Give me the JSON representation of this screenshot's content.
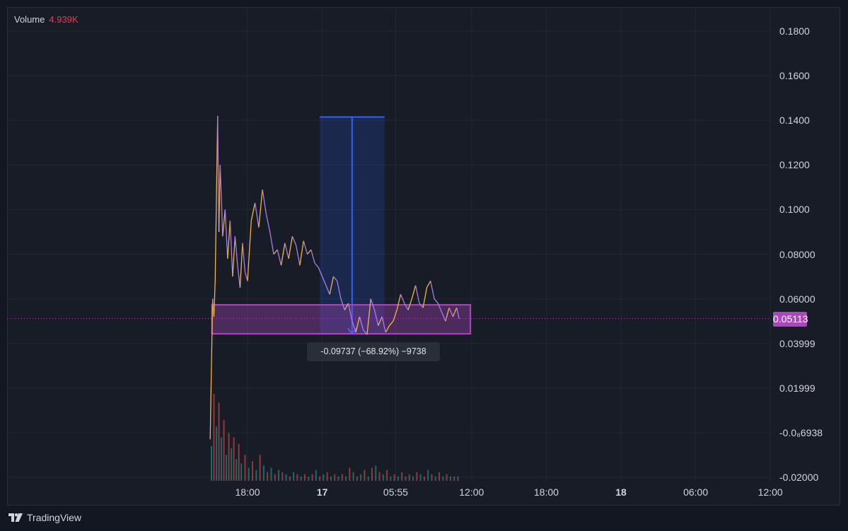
{
  "volume": {
    "label": "Volume",
    "value": "4.939K"
  },
  "brand": {
    "name": "TradingView",
    "icon": "tradingview-logo-icon"
  },
  "price_badge": "0.05113",
  "measure_label": "-0.09737 (−68.92%) −9738",
  "colors": {
    "background": "#181c27",
    "grid": "#242833",
    "price_line_up": "#f5b342",
    "price_line_down": "#a77ee8",
    "measure_fill": "#2962ff",
    "rectangle": "#ab47bc",
    "volume_up": "#26a69a",
    "volume_down": "#ef5350"
  },
  "chart_data": {
    "type": "line",
    "title": "",
    "xlabel": "",
    "ylabel": "",
    "ylim": [
      -0.02,
      0.19
    ],
    "y_ticks": [
      {
        "label": "0.1800",
        "value": 0.18
      },
      {
        "label": "0.1600",
        "value": 0.16
      },
      {
        "label": "0.1400",
        "value": 0.14
      },
      {
        "label": "0.1200",
        "value": 0.12
      },
      {
        "label": "0.1000",
        "value": 0.1
      },
      {
        "label": "0.08000",
        "value": 0.08
      },
      {
        "label": "0.06000",
        "value": 0.06
      },
      {
        "label": "0.03999",
        "value": 0.04
      },
      {
        "label": "0.01999",
        "value": 0.02
      },
      {
        "label": "-0.0₈6938",
        "value": 0.0
      },
      {
        "label": "-0.02000",
        "value": -0.02
      }
    ],
    "x_ticks": [
      {
        "label": "18:00",
        "t": 3,
        "bold": false
      },
      {
        "label": "17",
        "t": 9,
        "bold": true
      },
      {
        "label": "05:55",
        "t": 14.9,
        "bold": false
      },
      {
        "label": "12:00",
        "t": 21,
        "bold": false
      },
      {
        "label": "18:00",
        "t": 27,
        "bold": false
      },
      {
        "label": "18",
        "t": 33,
        "bold": true
      },
      {
        "label": "06:00",
        "t": 39,
        "bold": false
      },
      {
        "label": "12:00",
        "t": 45,
        "bold": false
      }
    ],
    "x_range_hours": [
      -2.5,
      49
    ],
    "series": [
      {
        "x": [
          0.0,
          0.1,
          0.2,
          0.3,
          0.4,
          0.5,
          0.6,
          0.7,
          0.8,
          0.9,
          1.0,
          1.2,
          1.4,
          1.6,
          1.8,
          2.0,
          2.2,
          2.4,
          2.6,
          2.8,
          3.0,
          3.3,
          3.6,
          3.9,
          4.2,
          4.5,
          4.8,
          5.1,
          5.4,
          5.7,
          6.0,
          6.3,
          6.6,
          6.9,
          7.2,
          7.5,
          7.8,
          8.1,
          8.4,
          8.7,
          9.0,
          9.3,
          9.6,
          9.9,
          10.2,
          10.5,
          10.8,
          11.1,
          11.4,
          11.7,
          12.0,
          12.3,
          12.6,
          12.9,
          13.2,
          13.5,
          13.8,
          14.1,
          14.4,
          14.7,
          15.0,
          15.3,
          15.6,
          15.9,
          16.2,
          16.5,
          16.8,
          17.1,
          17.4,
          17.7,
          18.0,
          18.3,
          18.6,
          18.9,
          19.2,
          19.5,
          19.8,
          20.0
        ],
        "values": [
          -0.003,
          0.03,
          0.06,
          0.052,
          0.068,
          0.105,
          0.142,
          0.09,
          0.12,
          0.105,
          0.088,
          0.1,
          0.078,
          0.095,
          0.07,
          0.088,
          0.075,
          0.065,
          0.085,
          0.072,
          0.068,
          0.095,
          0.103,
          0.092,
          0.109,
          0.098,
          0.09,
          0.08,
          0.082,
          0.075,
          0.085,
          0.078,
          0.088,
          0.084,
          0.075,
          0.086,
          0.08,
          0.082,
          0.076,
          0.074,
          0.07,
          0.066,
          0.062,
          0.07,
          0.068,
          0.06,
          0.055,
          0.058,
          0.05,
          0.045,
          0.052,
          0.046,
          0.044,
          0.06,
          0.055,
          0.048,
          0.052,
          0.045,
          0.048,
          0.05,
          0.055,
          0.062,
          0.058,
          0.055,
          0.06,
          0.066,
          0.058,
          0.056,
          0.065,
          0.068,
          0.06,
          0.058,
          0.054,
          0.05,
          0.056,
          0.052,
          0.056,
          0.051
        ]
      }
    ],
    "volume": {
      "x": [
        0.1,
        0.3,
        0.5,
        0.7,
        0.9,
        1.1,
        1.3,
        1.5,
        1.7,
        1.9,
        2.1,
        2.3,
        2.5,
        2.8,
        3.1,
        3.4,
        3.7,
        4.0,
        4.3,
        4.6,
        4.9,
        5.2,
        5.5,
        5.8,
        6.1,
        6.4,
        6.7,
        7.0,
        7.3,
        7.6,
        7.9,
        8.2,
        8.5,
        8.8,
        9.1,
        9.4,
        9.7,
        10.0,
        10.3,
        10.6,
        10.9,
        11.2,
        11.5,
        11.8,
        12.1,
        12.4,
        12.7,
        13.0,
        13.3,
        13.6,
        13.9,
        14.2,
        14.5,
        14.8,
        15.1,
        15.4,
        15.7,
        16.0,
        16.3,
        16.6,
        16.9,
        17.2,
        17.5,
        17.8,
        18.1,
        18.4,
        18.7,
        19.0,
        19.3,
        19.6,
        19.9
      ],
      "values": [
        0.016,
        0.04,
        0.025,
        0.036,
        0.02,
        0.028,
        0.012,
        0.022,
        0.015,
        0.02,
        0.01,
        0.017,
        0.008,
        0.012,
        0.006,
        0.009,
        0.005,
        0.012,
        0.007,
        0.004,
        0.006,
        0.003,
        0.005,
        0.004,
        0.003,
        0.002,
        0.004,
        0.003,
        0.002,
        0.003,
        0.002,
        0.003,
        0.005,
        0.002,
        0.003,
        0.004,
        0.002,
        0.003,
        0.002,
        0.003,
        0.002,
        0.006,
        0.004,
        0.002,
        0.003,
        0.005,
        0.002,
        0.006,
        0.007,
        0.004,
        0.003,
        0.005,
        0.002,
        0.003,
        0.002,
        0.004,
        0.002,
        0.003,
        0.002,
        0.004,
        0.003,
        0.002,
        0.005,
        0.003,
        0.002,
        0.004,
        0.002,
        0.003,
        0.002,
        0.002,
        0.002
      ],
      "ylim": [
        0,
        0.145
      ]
    },
    "annotations": {
      "measure": {
        "t_start": 8.8,
        "t_end": 14.0,
        "y_top": 0.1415,
        "y_bottom": 0.0443,
        "t_mid": 11.4
      },
      "rectangle": {
        "t_start": 0.2,
        "t_end": 20.9,
        "y_top": 0.0573,
        "y_bottom": 0.0443
      },
      "last_price": 0.05113
    }
  }
}
